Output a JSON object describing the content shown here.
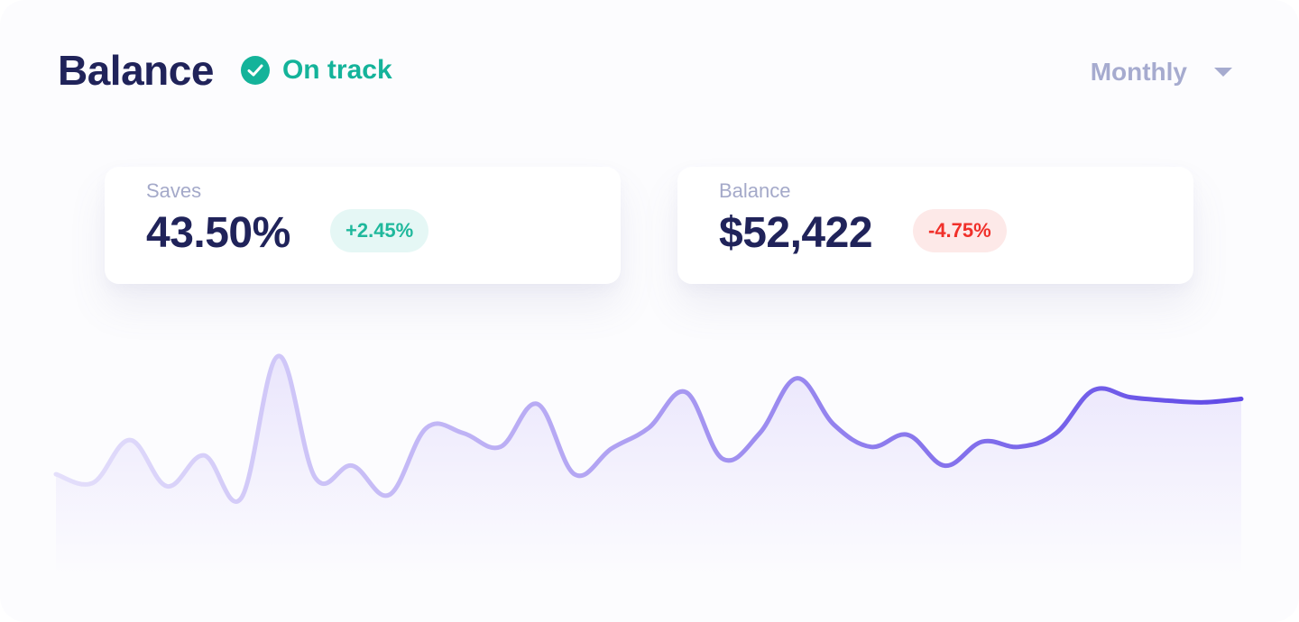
{
  "header": {
    "title": "Balance",
    "status": {
      "label": "On track",
      "icon": "check-circle-icon",
      "color": "#14b39a"
    }
  },
  "period": {
    "selected": "Monthly",
    "icon": "caret-down-icon"
  },
  "stats": [
    {
      "caption": "Saves",
      "value": "43.50%",
      "change": "+2.45%",
      "change_color": "#1fb89c",
      "change_bg": "#e5f7f5"
    },
    {
      "caption": "Balance",
      "value": "$52,422",
      "change": "-4.75%",
      "change_color": "#f0302a",
      "change_bg": "#fde9e8"
    }
  ],
  "colors": {
    "line_start": "#e4dffb",
    "line_end": "#5f49e6",
    "area_fill": "#8b6ff3"
  },
  "chart_data": {
    "type": "area",
    "x": [
      0,
      1,
      2,
      3,
      4,
      5,
      6,
      7,
      8,
      9,
      10,
      11,
      12,
      13,
      14,
      15,
      16,
      17,
      18,
      19,
      20,
      21,
      22,
      23,
      24,
      25,
      26,
      27,
      28,
      29,
      30,
      31,
      32
    ],
    "values": [
      0.21,
      0.16,
      0.41,
      0.14,
      0.32,
      0.07,
      0.9,
      0.19,
      0.26,
      0.09,
      0.48,
      0.45,
      0.37,
      0.62,
      0.21,
      0.36,
      0.48,
      0.69,
      0.3,
      0.45,
      0.77,
      0.5,
      0.37,
      0.44,
      0.26,
      0.4,
      0.37,
      0.45,
      0.7,
      0.66,
      0.64,
      0.63,
      0.65
    ],
    "ylim": [
      0,
      1
    ],
    "title": "",
    "xlabel": "",
    "ylabel": "",
    "grid": false
  }
}
